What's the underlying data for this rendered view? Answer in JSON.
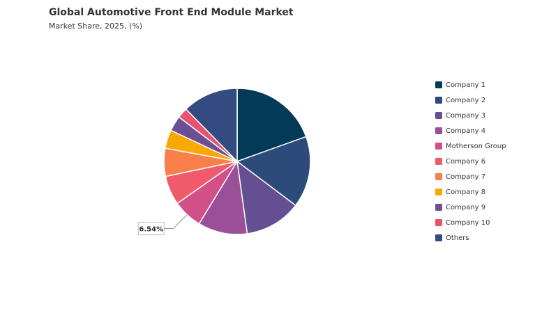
{
  "chart_data": {
    "type": "pie",
    "title": "Global Automotive Front End Module Market",
    "subtitle": "Market Share, 2025, (%)",
    "categories": [
      "Company 1",
      "Company 2",
      "Company 3",
      "Company 4",
      "Motherson Group",
      "Company 6",
      "Company 7",
      "Company 8",
      "Company 9",
      "Company 10",
      "Others"
    ],
    "values": [
      19.5,
      15.8,
      12.5,
      10.9,
      6.54,
      6.45,
      6.2,
      4.1,
      3.4,
      2.3,
      12.31
    ],
    "value_labels": [
      null,
      null,
      null,
      null,
      "6.54%",
      null,
      null,
      null,
      null,
      null,
      null
    ],
    "colors": [
      "#023a58",
      "#2c4a7a",
      "#634f92",
      "#9b4f98",
      "#d24f88",
      "#f05a6c",
      "#f9804a",
      "#f9a800",
      "#6c4f93",
      "#e8536f",
      "#334b80"
    ],
    "legend": "right"
  }
}
